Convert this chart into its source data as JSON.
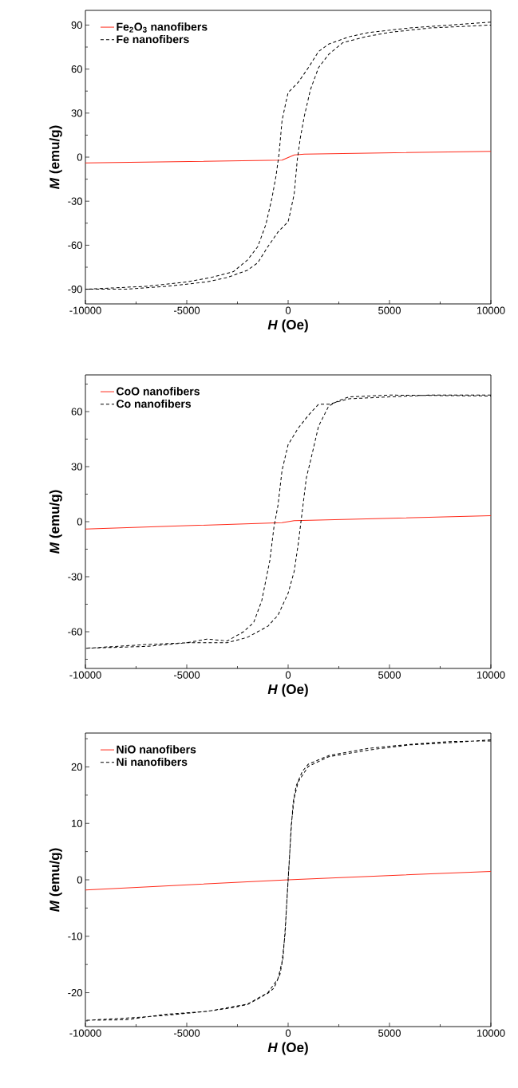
{
  "chart_data": [
    {
      "type": "line",
      "xlabel": "*H* (Oe)",
      "ylabel": "*M* (emu/g)",
      "xlim": [
        -10000,
        10000
      ],
      "ylim": [
        -100,
        100
      ],
      "legend": "top left",
      "xticks": [
        -10000,
        {
          "value": -7500,
          "label": null
        },
        -5000,
        {
          "value": -2500,
          "label": null
        },
        0,
        {
          "value": 2500,
          "label": null
        },
        5000,
        {
          "value": 7500,
          "label": null
        },
        10000
      ],
      "yticks": [
        -90,
        {
          "value": -75,
          "label": null
        },
        -60,
        {
          "value": -45,
          "label": null
        },
        -30,
        {
          "value": -15,
          "label": null
        },
        0,
        {
          "value": 15,
          "label": null
        },
        30,
        {
          "value": 45,
          "label": null
        },
        60,
        {
          "value": 75,
          "label": null
        },
        90
      ],
      "series": [
        {
          "name": "Fe$_{2}$O$_{3}$ nanofibers",
          "color": "#ff2a1a",
          "line_style": "solid",
          "x": [
            -10000,
            -300,
            300,
            800,
            10000
          ],
          "values": [
            -4,
            -2,
            1.5,
            2,
            4
          ]
        },
        {
          "name": "Fe nanofibers",
          "color": "#000000",
          "line_style": "dashed",
          "x": [
            10000,
            8000,
            6000,
            4000,
            3000,
            2000,
            1500,
            1000,
            500,
            0,
            -100,
            -300,
            -450,
            -600,
            -800,
            -1100,
            -1500,
            -2000,
            -2700,
            -3800,
            -5000,
            -7000,
            -10000,
            -8000,
            -6000,
            -4000,
            -3000,
            -2000,
            -1500,
            -1000,
            -500,
            0,
            100,
            300,
            450,
            600,
            800,
            1100,
            1500,
            2000,
            2700,
            3800,
            5000,
            7000,
            10000
          ],
          "values": [
            92,
            90,
            88,
            85,
            82,
            77,
            72,
            61,
            51,
            44,
            38,
            25,
            2,
            -13,
            -28,
            -46,
            -61,
            -70,
            -78,
            -82,
            -85,
            -88,
            -90,
            -90,
            -88,
            -85,
            -82,
            -77,
            -72,
            -61,
            -51,
            -44,
            -38,
            -25,
            -2,
            13,
            28,
            46,
            61,
            70,
            78,
            82,
            85,
            88,
            90
          ]
        }
      ]
    },
    {
      "type": "line",
      "xlabel": "*H* (Oe)",
      "ylabel": "*M* (emu/g)",
      "xlim": [
        -10000,
        10000
      ],
      "ylim": [
        -80,
        80
      ],
      "legend": "top left",
      "xticks": [
        -10000,
        {
          "value": -7500,
          "label": null
        },
        -5000,
        {
          "value": -2500,
          "label": null
        },
        0,
        {
          "value": 2500,
          "label": null
        },
        5000,
        {
          "value": 7500,
          "label": null
        },
        10000
      ],
      "yticks": [
        {
          "value": -75,
          "label": null
        },
        -60,
        {
          "value": -45,
          "label": null
        },
        -30,
        {
          "value": -15,
          "label": null
        },
        0,
        {
          "value": 15,
          "label": null
        },
        30,
        {
          "value": 45,
          "label": null
        },
        60,
        {
          "value": 75,
          "label": null
        }
      ],
      "series": [
        {
          "name": "CoO nanofibers",
          "color": "#ff2a1a",
          "line_style": "solid",
          "x": [
            -10000,
            -300,
            300,
            10000
          ],
          "values": [
            -4,
            -0.5,
            0.5,
            3.3
          ]
        },
        {
          "name": "Co nanofibers",
          "color": "#000000",
          "line_style": "dashed",
          "x": [
            10000,
            7000,
            5000,
            3000,
            2000,
            1500,
            1000,
            500,
            0,
            -300,
            -500,
            -700,
            -900,
            -1300,
            -1700,
            -2200,
            -3000,
            -4000,
            -5000,
            -7000,
            -10000,
            -7000,
            -5000,
            -3000,
            -2000,
            -1000,
            -500,
            0,
            300,
            500,
            700,
            900,
            1100,
            1500,
            2000,
            2500,
            3000,
            5000,
            10000
          ],
          "values": [
            69,
            69,
            68,
            67,
            64,
            64,
            58,
            51,
            42,
            28,
            9,
            -3,
            -21,
            -43,
            -55,
            -60,
            -65,
            -64,
            -66,
            -67,
            -69,
            -68,
            -66,
            -66,
            -63,
            -57,
            -51,
            -39,
            -27,
            -12,
            6,
            24,
            33,
            52,
            63,
            66,
            68,
            69,
            68.5
          ]
        }
      ]
    },
    {
      "type": "line",
      "xlabel": "*H* (Oe)",
      "ylabel": "*M* (emu/g)",
      "xlim": [
        -10000,
        10000
      ],
      "ylim": [
        -26,
        26
      ],
      "legend": "top left",
      "xticks": [
        -10000,
        {
          "value": -7500,
          "label": null
        },
        -5000,
        {
          "value": -2500,
          "label": null
        },
        0,
        {
          "value": 2500,
          "label": null
        },
        5000,
        {
          "value": 7500,
          "label": null
        },
        10000
      ],
      "yticks": [
        {
          "value": -25,
          "label": null
        },
        -20,
        {
          "value": -15,
          "label": null
        },
        -10,
        {
          "value": -5,
          "label": null
        },
        0,
        {
          "value": 5,
          "label": null
        },
        10,
        {
          "value": 15,
          "label": null
        },
        20,
        {
          "value": 25,
          "label": null
        }
      ],
      "series": [
        {
          "name": "NiO nanofibers",
          "color": "#ff2a1a",
          "line_style": "solid",
          "x": [
            -10000,
            0,
            10000
          ],
          "values": [
            -1.8,
            0,
            1.5
          ]
        },
        {
          "name": "Ni nanofibers",
          "color": "#000000",
          "line_style": "dashed",
          "x": [
            10000,
            8000,
            6000,
            4000,
            2000,
            1000,
            500,
            300,
            150,
            50,
            -50,
            -150,
            -250,
            -400,
            -700,
            -1000,
            -1500,
            -2000,
            -3000,
            -4000,
            -6000,
            -8000,
            -10000,
            -8000,
            -6000,
            -4000,
            -2000,
            -1000,
            -500,
            -300,
            -150,
            -50,
            50,
            150,
            250,
            400,
            700,
            1000,
            2000,
            4000,
            6000,
            8000,
            10000
          ],
          "values": [
            24.8,
            24.3,
            23.9,
            23,
            21.8,
            20.1,
            17.4,
            14.5,
            9.6,
            2.8,
            -3.1,
            -8.9,
            -13.8,
            -16.7,
            -19.2,
            -20.1,
            -21.1,
            -22.1,
            -22.8,
            -23.3,
            -23.8,
            -24.8,
            -24.9,
            -24.5,
            -24,
            -23.3,
            -22,
            -20,
            -17.5,
            -14.5,
            -9.6,
            -2.8,
            3.1,
            8.9,
            13.8,
            16.7,
            19.2,
            20.5,
            22,
            23.3,
            24,
            24.5,
            24.6
          ]
        }
      ]
    }
  ]
}
